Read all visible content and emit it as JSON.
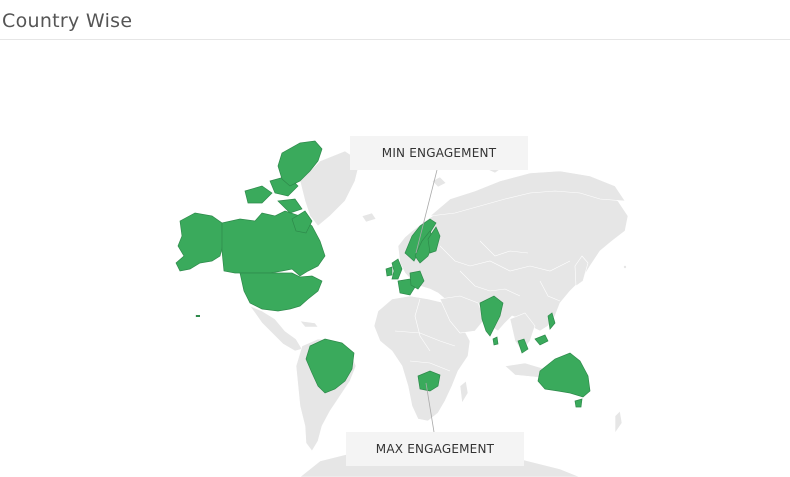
{
  "title": "Country Wise",
  "annotations": {
    "min": "MIN ENGAGEMENT",
    "max": "MAX ENGAGEMENT"
  },
  "colors": {
    "highlight": "#3aaa5c",
    "land": "#e6e6e6",
    "border": "#ffffff"
  },
  "highlighted_countries": [
    "Canada",
    "United States",
    "Greenland",
    "Brazil",
    "United Kingdom",
    "Ireland",
    "France",
    "Germany",
    "Netherlands",
    "Belgium",
    "Sweden",
    "Norway",
    "Finland",
    "India",
    "Sri Lanka",
    "Malaysia",
    "Philippines",
    "South Africa",
    "Australia"
  ]
}
